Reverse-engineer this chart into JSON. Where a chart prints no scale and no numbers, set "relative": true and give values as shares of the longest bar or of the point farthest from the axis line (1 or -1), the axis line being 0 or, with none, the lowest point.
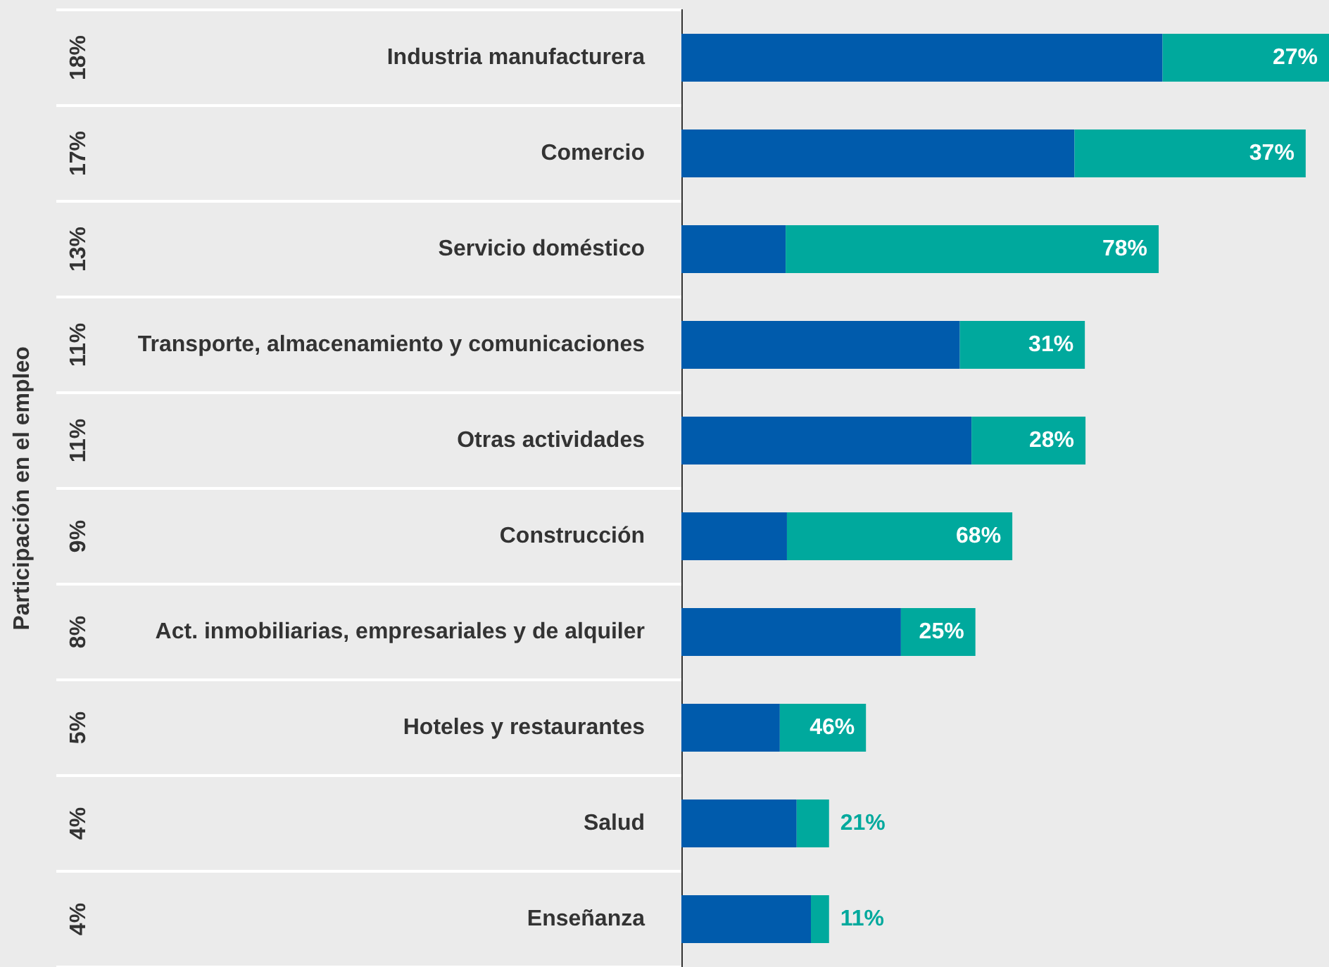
{
  "chart_data": {
    "type": "bar",
    "orientation": "horizontal",
    "stacked": true,
    "relative": true,
    "ylabel": "Participación en el empleo",
    "categories": [
      "Industria manufacturera",
      "Comercio",
      "Servicio doméstico",
      "Transporte, almacenamiento y comunicaciones",
      "Otras actividades",
      "Construcción",
      "Act. inmobiliarias, empresariales y de alquiler",
      "Hoteles y restaurantes",
      "Salud",
      "Enseñanza"
    ],
    "series": [
      {
        "color": "#005bac",
        "values": [
          0.743,
          0.607,
          0.161,
          0.43,
          0.448,
          0.163,
          0.339,
          0.152,
          0.178,
          0.2
        ]
      },
      {
        "color": "#00a99d",
        "values": [
          0.257,
          0.357,
          0.576,
          0.193,
          0.176,
          0.348,
          0.115,
          0.133,
          0.05,
          0.028
        ]
      }
    ],
    "annotations": [
      "18%",
      "17%",
      "13%",
      "11%",
      "11%",
      "9%",
      "8%",
      "5%",
      "4%",
      "4%",
      {
        "text": "27%",
        "x": 1,
        "y": "Industria manufacturera"
      },
      {
        "text": "37%",
        "x": 0.964,
        "y": "Comercio"
      },
      {
        "text": "78%",
        "x": 0.737,
        "y": "Servicio doméstico"
      },
      {
        "text": "31%",
        "x": 0.623,
        "y": "Transporte, almacenamiento y comunicaciones"
      },
      {
        "text": "28%",
        "x": 0.624,
        "y": "Otras actividades"
      },
      {
        "text": "68%",
        "x": 0.511,
        "y": "Construcción"
      },
      {
        "text": "25%",
        "x": 0.454,
        "y": "Act. inmobiliarias, empresariales y de alquiler"
      },
      {
        "text": "46%",
        "x": 0.285,
        "y": "Hoteles y restaurantes"
      },
      {
        "text": "21%",
        "x": 0.228,
        "y": "Salud"
      },
      {
        "text": "11%",
        "x": 0.228,
        "y": "Enseñanza"
      }
    ]
  }
}
